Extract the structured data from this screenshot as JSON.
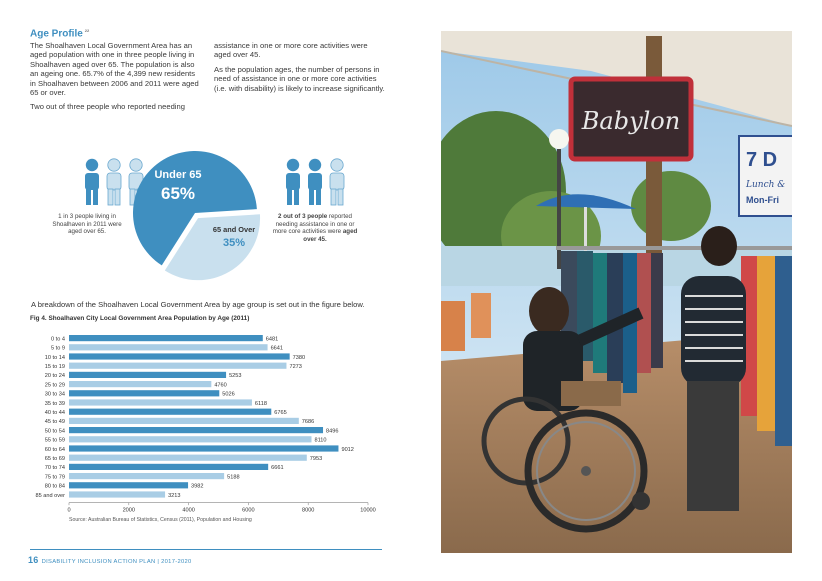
{
  "heading": {
    "title": "Age Profile",
    "ref": "22"
  },
  "body": {
    "col1_p1": "The Shoalhaven Local Government Area has an aged population with one in three people living in Shoalhaven aged over 65. The population is also an ageing one. 65.7% of the 4,399 new residents in Shoalhaven between 2006 and 2011 were aged 65 or over.",
    "col1_p2": "Two out of three people who reported needing",
    "col2_p1": "assistance in one or more core activities were aged over 45.",
    "col2_p2": "As the population ages, the number of persons in need of assistance in one or more core activities (i.e. with disability) is likely to increase significantly."
  },
  "infographic": {
    "under_label": "Under 65",
    "under_pct": "65%",
    "over_label": "65 and Over",
    "over_pct": "35%",
    "under_value": 65,
    "over_value": 35,
    "caption_left": "1 in 3 people living in Shoalhaven in 2011 were aged over 65.",
    "caption_right_bold1": "2 out of 3 people",
    "caption_right_mid": " reported needing assistance in one or more core activities were ",
    "caption_right_bold2": "aged over 45.",
    "colors": {
      "dark": "#3f8fc0",
      "light": "#c9e0ee"
    }
  },
  "breakdown_text": "A breakdown of the Shoalhaven Local Government Area by age group is set out in the figure below.",
  "chart_data": {
    "type": "bar",
    "orientation": "horizontal",
    "title": "Fig 4.  Shoalhaven City Local Government Area Population by Age (2011)",
    "categories": [
      "0 to 4",
      "5 to 9",
      "10 to 14",
      "15 to 19",
      "20 to 24",
      "25 to 29",
      "30 to 34",
      "35 to 39",
      "40 to 44",
      "45 to 49",
      "50 to 54",
      "55 to 59",
      "60 to 64",
      "65 to 69",
      "70 to 74",
      "75 to 79",
      "80 to 84",
      "85 and over"
    ],
    "values": [
      6481,
      6641,
      7380,
      7273,
      5253,
      4760,
      5026,
      6118,
      6765,
      7686,
      8496,
      8110,
      9012,
      7953,
      6661,
      5188,
      3982,
      3213
    ],
    "xlim": [
      0,
      10000
    ],
    "xticks": [
      "0",
      "2000",
      "4000",
      "6000",
      "8000",
      "10000"
    ],
    "xlabel": "",
    "ylabel": "",
    "grid": false,
    "colors": {
      "odd": "#3f8fc0",
      "even": "#a9cde5"
    }
  },
  "source": "Source: Australian Bureau of Statistics, Census (2011), Population and Housing",
  "footer": {
    "page_number": "16",
    "doc_title": "DISABILITY INCLUSION ACTION PLAN  |  2017-2020"
  },
  "photo": {
    "shop_sign": "Babylon",
    "side_sign_top": "7 D",
    "side_sign_mid": "Lunch &",
    "side_sign_bottom": "Mon-Fri"
  }
}
